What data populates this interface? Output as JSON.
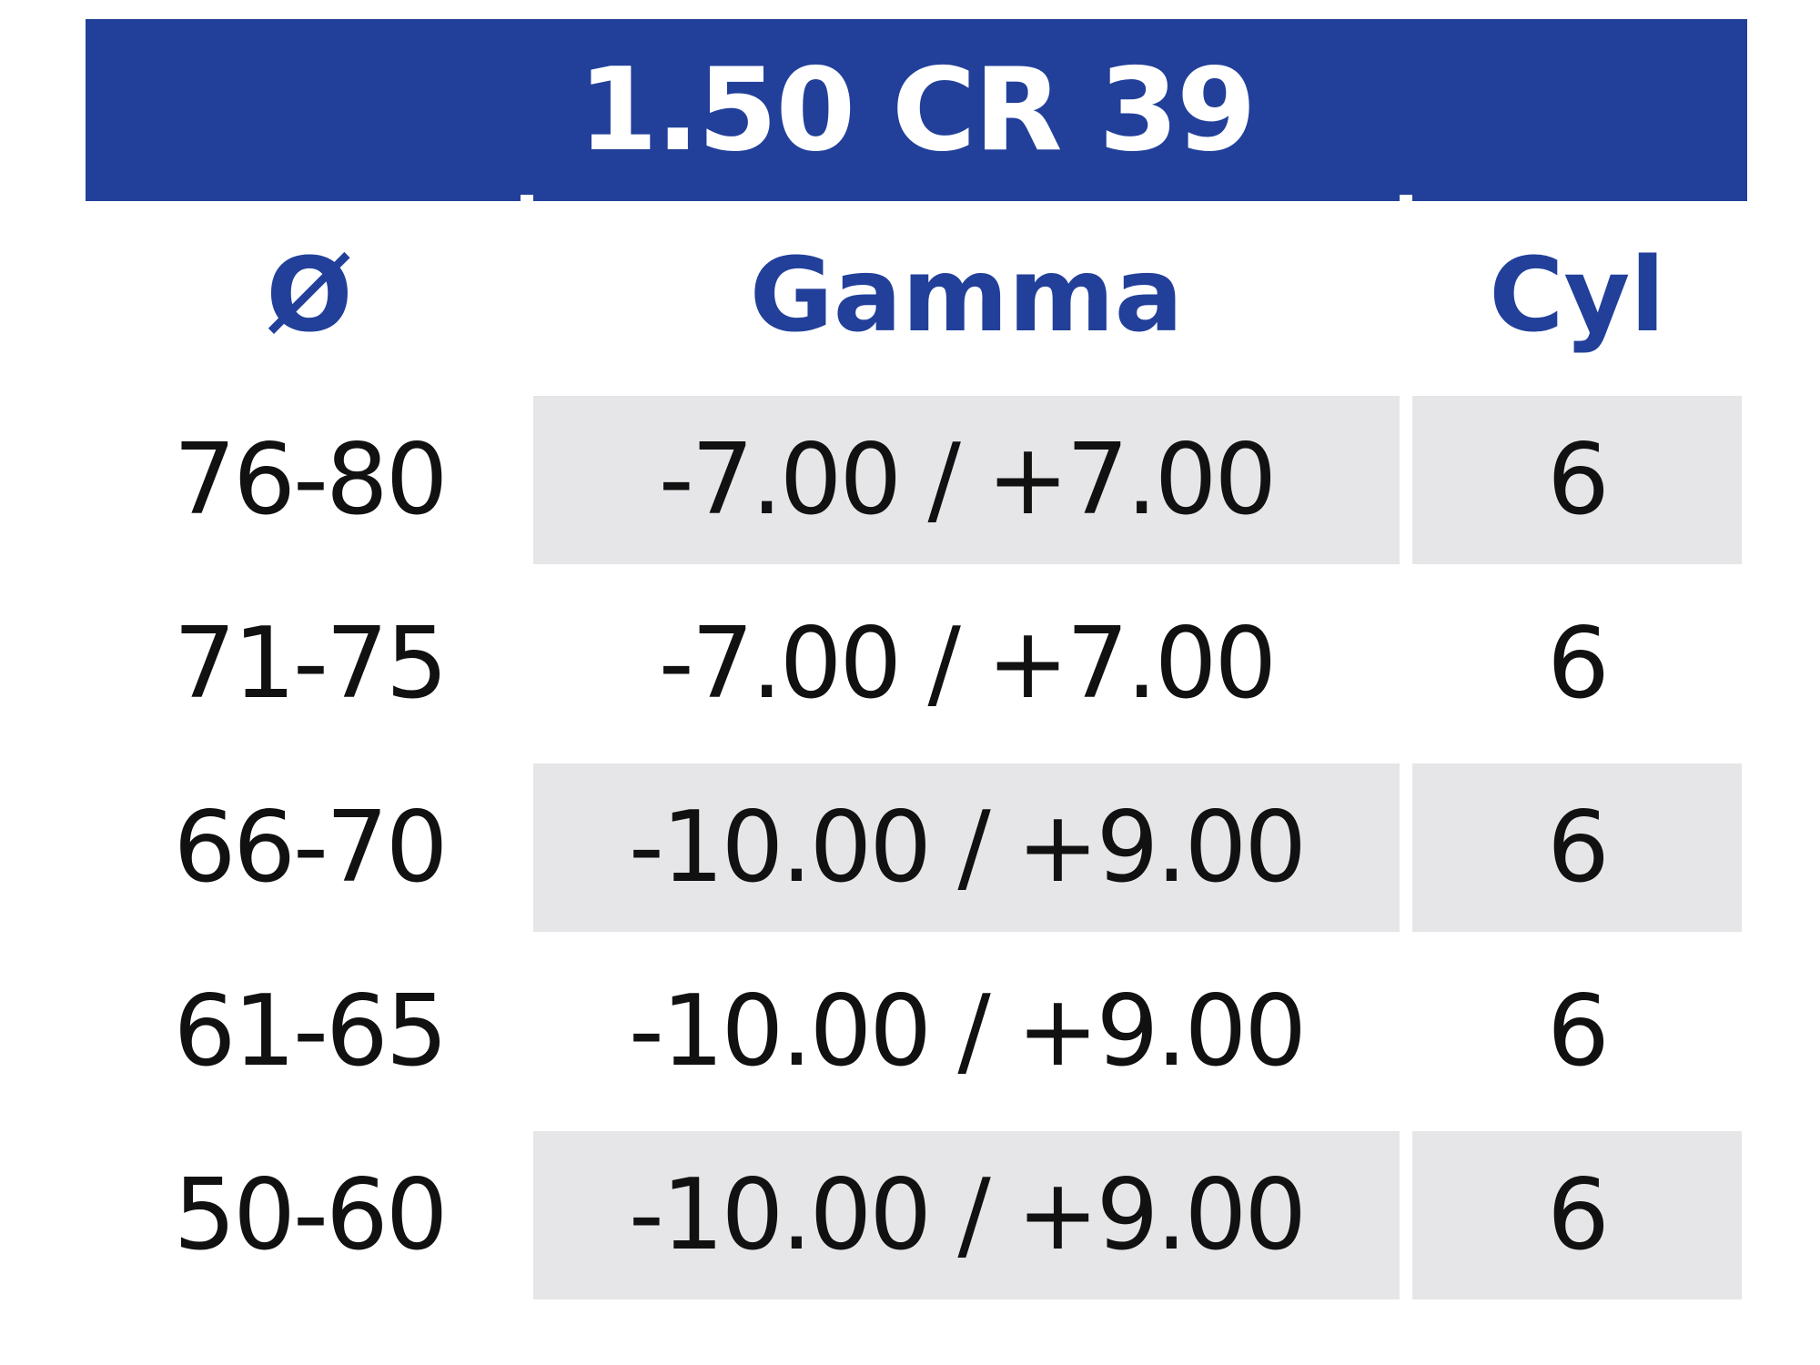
{
  "title": "1.50 CR 39",
  "headers": {
    "diameter": "Ø",
    "range": "Gamma",
    "cyl": "Cyl"
  },
  "rows": [
    {
      "diameter": "76-80",
      "range": "-7.00 / +7.00",
      "cyl": "6"
    },
    {
      "diameter": "71-75",
      "range": "-7.00 / +7.00",
      "cyl": "6"
    },
    {
      "diameter": "66-70",
      "range": "-10.00 / +9.00",
      "cyl": "6"
    },
    {
      "diameter": "61-65",
      "range": "-10.00 / +9.00",
      "cyl": "6"
    },
    {
      "diameter": "50-60",
      "range": "-10.00 / +9.00",
      "cyl": "6"
    }
  ],
  "colors": {
    "title_bg": "#22409a",
    "header_text": "#22409a",
    "shade": "#e6e6e8"
  }
}
